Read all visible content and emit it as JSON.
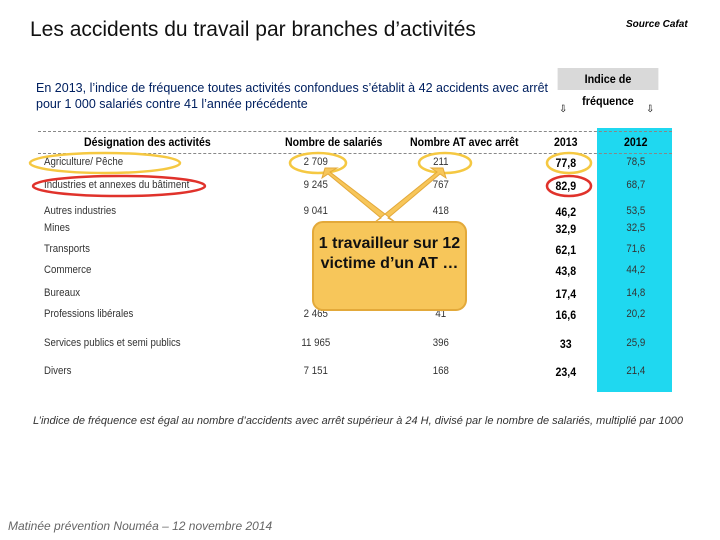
{
  "header": {
    "title": "Les accidents du travail par branches d’activités",
    "source": "Source Cafat"
  },
  "intro": "En 2013, l’indice de fréquence toutes activités confondues s’établit à 42 accidents avec arrêt pour 1 000 salariés contre 41 l’année précédente",
  "table": {
    "group_header": "Indice de fréquence",
    "columns": [
      "Désignation des activités",
      "Nombre de salariés",
      "Nombre AT avec arrêt",
      "2013",
      "2012"
    ],
    "rows": [
      [
        "Agriculture/ Pêche",
        "2 709",
        "211",
        "77,8",
        "78,5"
      ],
      [
        "Industries et annexes du bâtiment",
        "9 245",
        "767",
        "82,9",
        "68,7"
      ],
      [
        "Autres industries",
        "9 041",
        "418",
        "46,2",
        "53,5"
      ],
      [
        "Mines",
        null,
        null,
        "32,9",
        "32,5"
      ],
      [
        "Transports",
        null,
        null,
        "62,1",
        "71,6"
      ],
      [
        "Commerce",
        null,
        null,
        "43,8",
        "44,2"
      ],
      [
        "Bureaux",
        null,
        null,
        "17,4",
        "14,8"
      ],
      [
        "Professions libérales",
        "2 465",
        "41",
        "16,6",
        "20,2"
      ],
      [
        "Services publics et semi publics",
        "11 965",
        "396",
        "33",
        "25,9"
      ],
      [
        "Divers",
        "7 151",
        "168",
        "23,4",
        "21,4"
      ]
    ]
  },
  "callout": "1 travailleur sur 12 victime d’un AT …",
  "footnote": "L’indice de fréquence est égal au nombre d’accidents avec arrêt supérieur à 24 H, divisé par le nombre de salariés, multiplié par 1000",
  "footer": "Matinée prévention Nouméa – 12 novembre 2014"
}
